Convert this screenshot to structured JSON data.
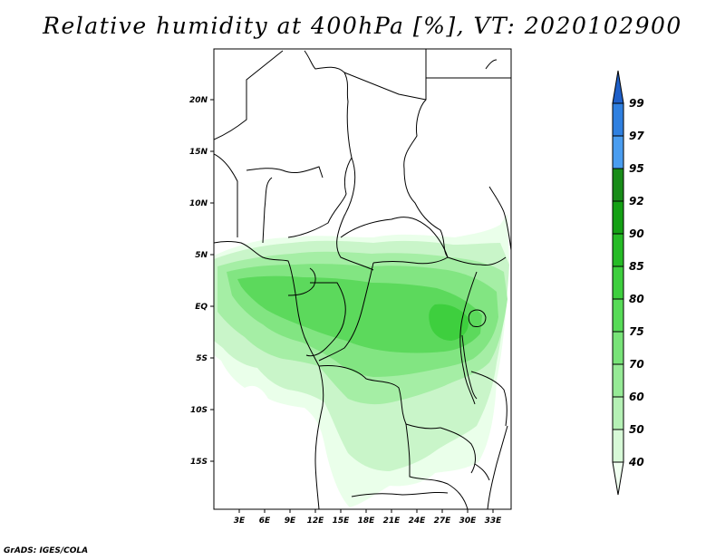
{
  "title": "Relative humidity at 400hPa [%], VT: 2020102900",
  "credit": "GrADS: IGES/COLA",
  "map": {
    "lat_labels": [
      "20N",
      "15N",
      "10N",
      "5N",
      "EQ",
      "5S",
      "10S",
      "15S"
    ],
    "lon_labels": [
      "3E",
      "6E",
      "9E",
      "12E",
      "15E",
      "18E",
      "21E",
      "24E",
      "27E",
      "30E",
      "33E"
    ]
  },
  "colorbar": {
    "levels": [
      "40",
      "50",
      "60",
      "70",
      "75",
      "80",
      "85",
      "90",
      "92",
      "95",
      "97",
      "99"
    ],
    "colors": [
      "#f0fff0",
      "#d7f9d7",
      "#b5f1b5",
      "#96ea96",
      "#78e378",
      "#57db57",
      "#3ecf3e",
      "#26bb26",
      "#14a014",
      "#188c18",
      "#4a9df0",
      "#2f80e0",
      "#1e5fc8"
    ]
  }
}
